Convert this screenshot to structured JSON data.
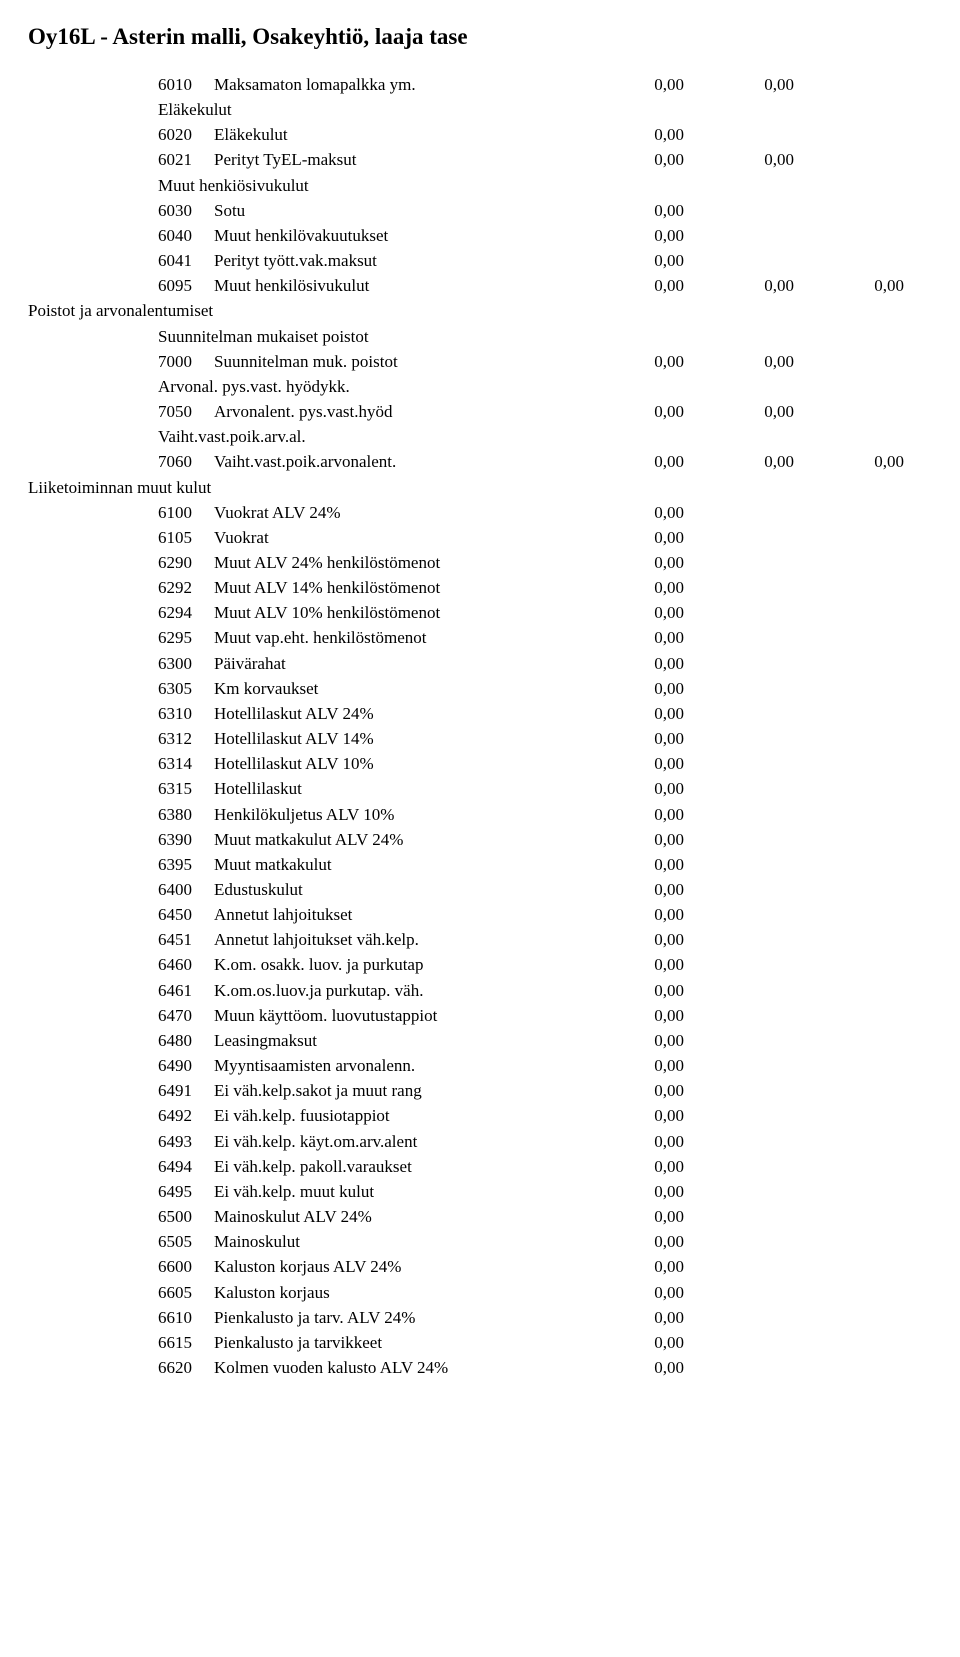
{
  "title": "Oy16L - Asterin malli, Osakeyhtiö, laaja tase",
  "rows": [
    {
      "type": "line",
      "code": "6010",
      "label": "Maksamaton lomapalkka ym.",
      "c1": "0,00",
      "c2": "0,00",
      "c3": ""
    },
    {
      "type": "group",
      "label": "Eläkekulut"
    },
    {
      "type": "line",
      "code": "6020",
      "label": "Eläkekulut",
      "c1": "0,00",
      "c2": "",
      "c3": ""
    },
    {
      "type": "line",
      "code": "6021",
      "label": "Perityt TyEL-maksut",
      "c1": "0,00",
      "c2": "0,00",
      "c3": ""
    },
    {
      "type": "group",
      "label": "Muut henkiösivukulut"
    },
    {
      "type": "line",
      "code": "6030",
      "label": "Sotu",
      "c1": "0,00",
      "c2": "",
      "c3": ""
    },
    {
      "type": "line",
      "code": "6040",
      "label": "Muut henkilövakuutukset",
      "c1": "0,00",
      "c2": "",
      "c3": ""
    },
    {
      "type": "line",
      "code": "6041",
      "label": "Perityt tyött.vak.maksut",
      "c1": "0,00",
      "c2": "",
      "c3": ""
    },
    {
      "type": "line",
      "code": "6095",
      "label": "Muut henkilösivukulut",
      "c1": "0,00",
      "c2": "0,00",
      "c3": "0,00"
    },
    {
      "type": "group0",
      "label": "Poistot ja arvonalentumiset"
    },
    {
      "type": "group",
      "label": "Suunnitelman mukaiset poistot"
    },
    {
      "type": "line",
      "code": "7000",
      "label": "Suunnitelman muk. poistot",
      "c1": "0,00",
      "c2": "0,00",
      "c3": ""
    },
    {
      "type": "group",
      "label": "Arvonal. pys.vast. hyödykk."
    },
    {
      "type": "line",
      "code": "7050",
      "label": "Arvonalent. pys.vast.hyöd",
      "c1": "0,00",
      "c2": "0,00",
      "c3": ""
    },
    {
      "type": "group",
      "label": "Vaiht.vast.poik.arv.al."
    },
    {
      "type": "line",
      "code": "7060",
      "label": "Vaiht.vast.poik.arvonalent.",
      "c1": "0,00",
      "c2": "0,00",
      "c3": "0,00"
    },
    {
      "type": "group0",
      "label": "Liiketoiminnan muut kulut"
    },
    {
      "type": "line",
      "code": "6100",
      "label": "Vuokrat ALV 24%",
      "c1": "0,00",
      "c2": "",
      "c3": ""
    },
    {
      "type": "line",
      "code": "6105",
      "label": "Vuokrat",
      "c1": "0,00",
      "c2": "",
      "c3": ""
    },
    {
      "type": "line",
      "code": "6290",
      "label": "Muut ALV 24% henkilöstömenot",
      "c1": "0,00",
      "c2": "",
      "c3": ""
    },
    {
      "type": "line",
      "code": "6292",
      "label": "Muut ALV 14% henkilöstömenot",
      "c1": "0,00",
      "c2": "",
      "c3": ""
    },
    {
      "type": "line",
      "code": "6294",
      "label": "Muut ALV 10% henkilöstömenot",
      "c1": "0,00",
      "c2": "",
      "c3": ""
    },
    {
      "type": "line",
      "code": "6295",
      "label": "Muut vap.eht. henkilöstömenot",
      "c1": "0,00",
      "c2": "",
      "c3": ""
    },
    {
      "type": "line",
      "code": "6300",
      "label": "Päivärahat",
      "c1": "0,00",
      "c2": "",
      "c3": ""
    },
    {
      "type": "line",
      "code": "6305",
      "label": "Km korvaukset",
      "c1": "0,00",
      "c2": "",
      "c3": ""
    },
    {
      "type": "line",
      "code": "6310",
      "label": "Hotellilaskut ALV 24%",
      "c1": "0,00",
      "c2": "",
      "c3": ""
    },
    {
      "type": "line",
      "code": "6312",
      "label": "Hotellilaskut ALV 14%",
      "c1": "0,00",
      "c2": "",
      "c3": ""
    },
    {
      "type": "line",
      "code": "6314",
      "label": "Hotellilaskut ALV 10%",
      "c1": "0,00",
      "c2": "",
      "c3": ""
    },
    {
      "type": "line",
      "code": "6315",
      "label": "Hotellilaskut",
      "c1": "0,00",
      "c2": "",
      "c3": ""
    },
    {
      "type": "line",
      "code": "6380",
      "label": "Henkilökuljetus ALV 10%",
      "c1": "0,00",
      "c2": "",
      "c3": ""
    },
    {
      "type": "line",
      "code": "6390",
      "label": "Muut matkakulut ALV 24%",
      "c1": "0,00",
      "c2": "",
      "c3": ""
    },
    {
      "type": "line",
      "code": "6395",
      "label": "Muut matkakulut",
      "c1": "0,00",
      "c2": "",
      "c3": ""
    },
    {
      "type": "line",
      "code": "6400",
      "label": "Edustuskulut",
      "c1": "0,00",
      "c2": "",
      "c3": ""
    },
    {
      "type": "line",
      "code": "6450",
      "label": "Annetut lahjoitukset",
      "c1": "0,00",
      "c2": "",
      "c3": ""
    },
    {
      "type": "line",
      "code": "6451",
      "label": "Annetut lahjoitukset väh.kelp.",
      "c1": "0,00",
      "c2": "",
      "c3": ""
    },
    {
      "type": "line",
      "code": "6460",
      "label": "K.om. osakk. luov. ja purkutap",
      "c1": "0,00",
      "c2": "",
      "c3": ""
    },
    {
      "type": "line",
      "code": "6461",
      "label": "K.om.os.luov.ja purkutap. väh.",
      "c1": "0,00",
      "c2": "",
      "c3": ""
    },
    {
      "type": "line",
      "code": "6470",
      "label": "Muun käyttöom. luovutustappiot",
      "c1": "0,00",
      "c2": "",
      "c3": ""
    },
    {
      "type": "line",
      "code": "6480",
      "label": "Leasingmaksut",
      "c1": "0,00",
      "c2": "",
      "c3": ""
    },
    {
      "type": "line",
      "code": "6490",
      "label": "Myyntisaamisten arvonalenn.",
      "c1": "0,00",
      "c2": "",
      "c3": ""
    },
    {
      "type": "line",
      "code": "6491",
      "label": "Ei väh.kelp.sakot ja muut rang",
      "c1": "0,00",
      "c2": "",
      "c3": ""
    },
    {
      "type": "line",
      "code": "6492",
      "label": "Ei väh.kelp. fuusiotappiot",
      "c1": "0,00",
      "c2": "",
      "c3": ""
    },
    {
      "type": "line",
      "code": "6493",
      "label": "Ei väh.kelp. käyt.om.arv.alent",
      "c1": "0,00",
      "c2": "",
      "c3": ""
    },
    {
      "type": "line",
      "code": "6494",
      "label": "Ei väh.kelp. pakoll.varaukset",
      "c1": "0,00",
      "c2": "",
      "c3": ""
    },
    {
      "type": "line",
      "code": "6495",
      "label": "Ei väh.kelp. muut kulut",
      "c1": "0,00",
      "c2": "",
      "c3": ""
    },
    {
      "type": "line",
      "code": "6500",
      "label": "Mainoskulut ALV 24%",
      "c1": "0,00",
      "c2": "",
      "c3": ""
    },
    {
      "type": "line",
      "code": "6505",
      "label": "Mainoskulut",
      "c1": "0,00",
      "c2": "",
      "c3": ""
    },
    {
      "type": "line",
      "code": "6600",
      "label": "Kaluston korjaus ALV 24%",
      "c1": "0,00",
      "c2": "",
      "c3": ""
    },
    {
      "type": "line",
      "code": "6605",
      "label": "Kaluston korjaus",
      "c1": "0,00",
      "c2": "",
      "c3": ""
    },
    {
      "type": "line",
      "code": "6610",
      "label": "Pienkalusto ja tarv. ALV 24%",
      "c1": "0,00",
      "c2": "",
      "c3": ""
    },
    {
      "type": "line",
      "code": "6615",
      "label": "Pienkalusto ja tarvikkeet",
      "c1": "0,00",
      "c2": "",
      "c3": ""
    },
    {
      "type": "line",
      "code": "6620",
      "label": "Kolmen vuoden kalusto ALV 24%",
      "c1": "0,00",
      "c2": "",
      "c3": ""
    }
  ]
}
